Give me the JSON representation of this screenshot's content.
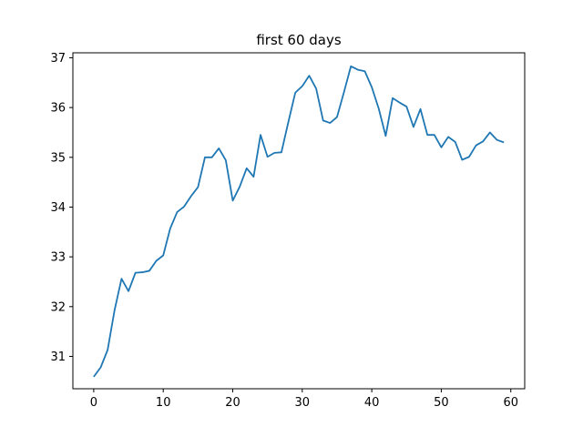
{
  "chart_data": {
    "type": "line",
    "title": "first 60 days",
    "xlabel": "",
    "ylabel": "",
    "xlim": [
      -3,
      62
    ],
    "ylim": [
      30.35,
      37.1
    ],
    "xticks": [
      0,
      10,
      20,
      30,
      40,
      50,
      60
    ],
    "yticks": [
      31,
      32,
      33,
      34,
      35,
      36,
      37
    ],
    "grid": false,
    "line_color": "#1f77b4",
    "series": [
      {
        "x": [
          0,
          1,
          2,
          3,
          4,
          5,
          6,
          7,
          8,
          9,
          10,
          11,
          12,
          13,
          14,
          15,
          16,
          17,
          18,
          19,
          20,
          21,
          22,
          23,
          24,
          25,
          26,
          27,
          28,
          29,
          30,
          31,
          32,
          33,
          34,
          35,
          36,
          37,
          38,
          39,
          40,
          41,
          42,
          43,
          44,
          45,
          46,
          47,
          48,
          49,
          50,
          51,
          52,
          53,
          54,
          55,
          56,
          57,
          58,
          59
        ],
        "values": [
          30.59,
          30.78,
          31.13,
          31.93,
          32.56,
          32.31,
          32.68,
          32.69,
          32.72,
          32.92,
          33.03,
          33.57,
          33.9,
          34.01,
          34.22,
          34.4,
          35.0,
          35.0,
          35.18,
          34.94,
          34.13,
          34.41,
          34.78,
          34.61,
          35.45,
          35.01,
          35.09,
          35.1,
          35.71,
          36.3,
          36.43,
          36.64,
          36.38,
          35.74,
          35.69,
          35.81,
          36.31,
          36.83,
          36.76,
          36.73,
          36.41,
          35.98,
          35.43,
          36.19,
          36.1,
          36.02,
          35.61,
          35.97,
          35.45,
          35.45,
          35.2,
          35.41,
          35.31,
          34.95,
          35.01,
          35.24,
          35.32,
          35.5,
          35.35,
          35.3
        ]
      }
    ]
  }
}
